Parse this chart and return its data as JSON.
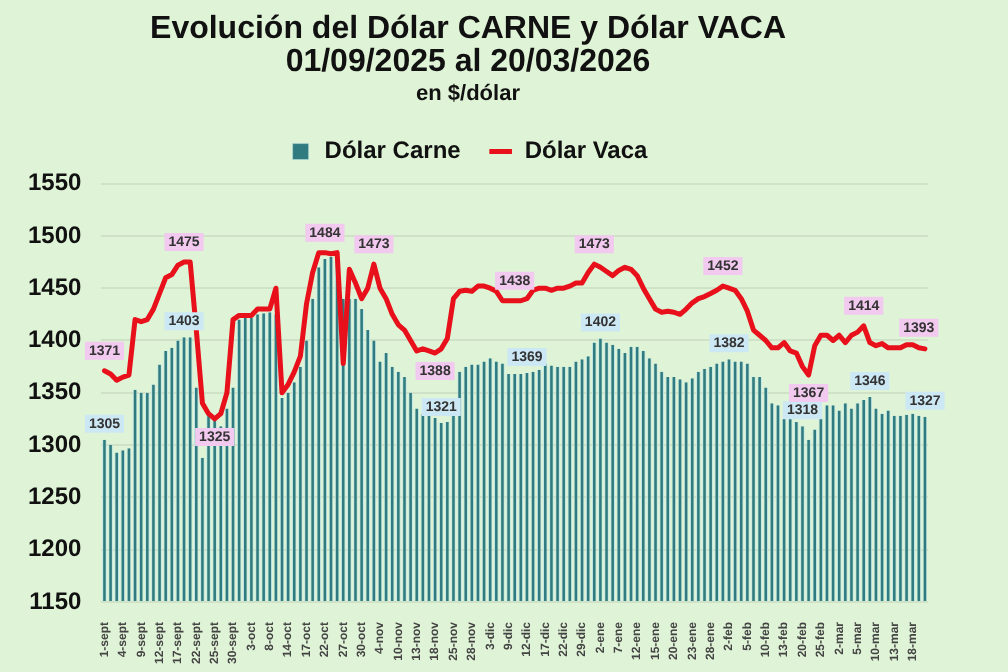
{
  "chart_data": {
    "type": "bar",
    "title": "Evolución del Dólar CARNE y Dólar VACA\n01/09/2025 al 20/03/2026",
    "subtitle": "en $/dólar",
    "categories": [
      "1-sept",
      null,
      null,
      "4-sept",
      null,
      null,
      "9-sept",
      null,
      null,
      "12-sept",
      null,
      null,
      "17-sept",
      null,
      null,
      "22-sept",
      null,
      null,
      "25-sept",
      null,
      null,
      "30-sept",
      null,
      null,
      "3-oct",
      null,
      null,
      "8-oct",
      null,
      null,
      "14-oct",
      null,
      null,
      "17-oct",
      null,
      null,
      "22-oct",
      null,
      null,
      "27-oct",
      null,
      null,
      "30-oct",
      null,
      null,
      "4-nov",
      null,
      null,
      "10-nov",
      null,
      null,
      "13-nov",
      null,
      null,
      "18-nov",
      null,
      null,
      "25-nov",
      null,
      null,
      "28-nov",
      null,
      null,
      "3-dic",
      null,
      null,
      "9-dic",
      null,
      null,
      "12-dic",
      null,
      null,
      "17-dic",
      null,
      null,
      "22-dic",
      null,
      null,
      "29-dic",
      null,
      null,
      "2-ene",
      null,
      null,
      "7-ene",
      null,
      null,
      "12-ene",
      null,
      null,
      "15-ene",
      null,
      null,
      "20-ene",
      null,
      null,
      "23-ene",
      null,
      null,
      "28-ene",
      null,
      null,
      "2-feb",
      null,
      null,
      "5-feb",
      null,
      null,
      "10-feb",
      null,
      null,
      "13-feb",
      null,
      null,
      "20-feb",
      null,
      null,
      "25-feb",
      null,
      null,
      "2-mar",
      null,
      null,
      "5-mar",
      null,
      null,
      "10-mar",
      null,
      null,
      "13-mar",
      null,
      null,
      "18-mar",
      null,
      null
    ],
    "series": [
      {
        "name": "Dólar Carne",
        "color": "#2f7b80",
        "values": [
          1305,
          1300,
          1293,
          1295,
          1297,
          1353,
          1350,
          1350,
          1358,
          1377,
          1390,
          1393,
          1400,
          1403,
          1403,
          1355,
          1288,
          1330,
          1325,
          1318,
          1335,
          1355,
          1420,
          1422,
          1422,
          1425,
          1426,
          1427,
          1425,
          1345,
          1350,
          1360,
          1375,
          1400,
          1440,
          1470,
          1478,
          1480,
          1476,
          1440,
          1440,
          1440,
          1430,
          1410,
          1400,
          1380,
          1388,
          1375,
          1370,
          1365,
          1350,
          1335,
          1330,
          1328,
          1326,
          1321,
          1322,
          1330,
          1370,
          1375,
          1377,
          1377,
          1380,
          1383,
          1380,
          1378,
          1368,
          1368,
          1368,
          1369,
          1370,
          1372,
          1378,
          1376,
          1375,
          1375,
          1375,
          1380,
          1382,
          1385,
          1398,
          1402,
          1398,
          1396,
          1392,
          1388,
          1394,
          1394,
          1390,
          1383,
          1378,
          1370,
          1365,
          1365,
          1363,
          1360,
          1364,
          1370,
          1373,
          1375,
          1378,
          1380,
          1382,
          1380,
          1380,
          1378,
          1365,
          1365,
          1355,
          1340,
          1338,
          1325,
          1325,
          1322,
          1318,
          1305,
          1315,
          1325,
          1338,
          1338,
          1333,
          1340,
          1335,
          1340,
          1343,
          1346,
          1335,
          1330,
          1333,
          1328,
          1328,
          1329,
          1330,
          1328,
          1327
        ],
        "value_labels": [
          "1305",
          null,
          null,
          null,
          null,
          null,
          null,
          null,
          null,
          null,
          null,
          null,
          null,
          "1403",
          null,
          null,
          null,
          null,
          null,
          null,
          null,
          null,
          null,
          null,
          null,
          null,
          null,
          null,
          null,
          null,
          null,
          null,
          null,
          null,
          null,
          null,
          null,
          null,
          null,
          null,
          null,
          null,
          null,
          null,
          null,
          null,
          null,
          null,
          null,
          null,
          null,
          null,
          null,
          null,
          null,
          "1321",
          null,
          null,
          null,
          null,
          null,
          null,
          null,
          null,
          null,
          null,
          null,
          null,
          null,
          "1369",
          null,
          null,
          null,
          null,
          null,
          null,
          null,
          null,
          null,
          null,
          null,
          "1402",
          null,
          null,
          null,
          null,
          null,
          null,
          null,
          null,
          null,
          null,
          null,
          null,
          null,
          null,
          null,
          null,
          null,
          null,
          null,
          null,
          "1382",
          null,
          null,
          null,
          null,
          null,
          null,
          null,
          null,
          null,
          null,
          null,
          "1318",
          null,
          null,
          null,
          null,
          null,
          null,
          null,
          null,
          null,
          null,
          "1346",
          null,
          null,
          null,
          null,
          null,
          null,
          null,
          null,
          "1327"
        ]
      },
      {
        "name": "Dólar Vaca",
        "type": "line",
        "color": "#e8101a",
        "values": [
          1371,
          1368,
          1362,
          1365,
          1367,
          1420,
          1418,
          1420,
          1430,
          1445,
          1460,
          1463,
          1472,
          1475,
          1475,
          1410,
          1340,
          1330,
          1325,
          1330,
          1350,
          1420,
          1424,
          1424,
          1424,
          1430,
          1430,
          1430,
          1450,
          1350,
          1358,
          1370,
          1385,
          1435,
          1465,
          1484,
          1484,
          1483,
          1484,
          1378,
          1468,
          1455,
          1440,
          1450,
          1473,
          1450,
          1440,
          1425,
          1415,
          1410,
          1400,
          1390,
          1392,
          1390,
          1388,
          1392,
          1402,
          1440,
          1447,
          1448,
          1447,
          1452,
          1452,
          1450,
          1447,
          1438,
          1438,
          1438,
          1438,
          1440,
          1448,
          1450,
          1450,
          1448,
          1450,
          1450,
          1452,
          1455,
          1455,
          1465,
          1473,
          1470,
          1466,
          1462,
          1467,
          1470,
          1468,
          1462,
          1450,
          1440,
          1430,
          1427,
          1428,
          1427,
          1425,
          1430,
          1436,
          1440,
          1442,
          1445,
          1448,
          1452,
          1450,
          1448,
          1440,
          1428,
          1410,
          1405,
          1400,
          1393,
          1393,
          1398,
          1390,
          1388,
          1375,
          1367,
          1395,
          1405,
          1405,
          1400,
          1405,
          1398,
          1405,
          1408,
          1414,
          1398,
          1395,
          1397,
          1393,
          1393,
          1393,
          1396,
          1396,
          1393,
          1392
        ],
        "value_labels": [
          "1371",
          null,
          null,
          null,
          null,
          null,
          null,
          null,
          null,
          null,
          null,
          null,
          null,
          "1475",
          null,
          null,
          null,
          null,
          "1325",
          null,
          null,
          null,
          null,
          null,
          null,
          null,
          null,
          null,
          null,
          null,
          null,
          null,
          null,
          null,
          null,
          null,
          "1484",
          null,
          null,
          null,
          null,
          null,
          null,
          null,
          "1473",
          null,
          null,
          null,
          null,
          null,
          null,
          null,
          null,
          null,
          "1388",
          null,
          null,
          null,
          null,
          null,
          null,
          null,
          null,
          null,
          null,
          null,
          null,
          "1438",
          null,
          null,
          null,
          null,
          null,
          null,
          null,
          null,
          null,
          null,
          null,
          null,
          "1473",
          null,
          null,
          null,
          null,
          null,
          null,
          null,
          null,
          null,
          null,
          null,
          null,
          null,
          null,
          null,
          null,
          null,
          null,
          null,
          null,
          "1452",
          null,
          null,
          null,
          null,
          null,
          null,
          null,
          null,
          null,
          null,
          null,
          null,
          null,
          "1367",
          null,
          null,
          null,
          null,
          null,
          null,
          null,
          null,
          "1414",
          null,
          null,
          null,
          null,
          null,
          null,
          null,
          null,
          "1393",
          null
        ]
      }
    ],
    "ylim": [
      1150,
      1550
    ],
    "yticks": [
      1150,
      1200,
      1250,
      1300,
      1350,
      1400,
      1450,
      1500,
      1550
    ],
    "grid": "y",
    "legend": "top",
    "marker": "none",
    "line_style": "solid"
  }
}
